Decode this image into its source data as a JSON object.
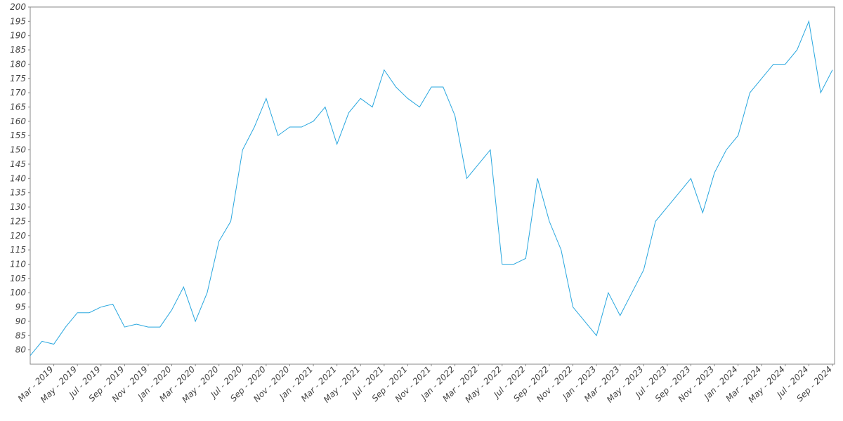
{
  "chart_data": {
    "type": "line",
    "x": [
      "2019-01",
      "2019-02",
      "2019-03",
      "2019-04",
      "2019-05",
      "2019-06",
      "2019-07",
      "2019-08",
      "2019-09",
      "2019-10",
      "2019-11",
      "2019-12",
      "2020-01",
      "2020-02",
      "2020-03",
      "2020-04",
      "2020-05",
      "2020-06",
      "2020-07",
      "2020-08",
      "2020-09",
      "2020-10",
      "2020-11",
      "2020-12",
      "2021-01",
      "2021-02",
      "2021-03",
      "2021-04",
      "2021-05",
      "2021-06",
      "2021-07",
      "2021-08",
      "2021-09",
      "2021-10",
      "2021-11",
      "2021-12",
      "2022-01",
      "2022-02",
      "2022-03",
      "2022-04",
      "2022-05",
      "2022-06",
      "2022-07",
      "2022-08",
      "2022-09",
      "2022-10",
      "2022-11",
      "2022-12",
      "2023-01",
      "2023-02",
      "2023-03",
      "2023-04",
      "2023-05",
      "2023-06",
      "2023-07",
      "2023-08",
      "2023-09",
      "2023-10",
      "2023-11",
      "2023-12",
      "2024-01",
      "2024-02",
      "2024-03",
      "2024-04",
      "2024-05",
      "2024-06",
      "2024-07",
      "2024-08",
      "2024-09"
    ],
    "series": [
      {
        "color": "#29a7df",
        "values": [
          78,
          83,
          82,
          88,
          93,
          93,
          95,
          96,
          88,
          89,
          88,
          88,
          94,
          102,
          90,
          100,
          118,
          125,
          150,
          158,
          168,
          155,
          158,
          158,
          160,
          165,
          152,
          163,
          168,
          165,
          178,
          172,
          168,
          165,
          172,
          172,
          162,
          140,
          145,
          150,
          110,
          110,
          112,
          140,
          125,
          115,
          95,
          90,
          85,
          100,
          92,
          100,
          108,
          125,
          130,
          135,
          140,
          128,
          142,
          150,
          155,
          170,
          175,
          180,
          180,
          185,
          195,
          170,
          178
        ]
      }
    ],
    "xlim": [
      "2019-01",
      "2024-09"
    ],
    "xticks": [
      {
        "value": "2019-03",
        "label": "Mar - 2019"
      },
      {
        "value": "2019-05",
        "label": "May - 2019"
      },
      {
        "value": "2019-07",
        "label": "Jul - 2019"
      },
      {
        "value": "2019-09",
        "label": "Sep - 2019"
      },
      {
        "value": "2019-11",
        "label": "Nov - 2019"
      },
      {
        "value": "2020-01",
        "label": "Jan - 2020"
      },
      {
        "value": "2020-03",
        "label": "Mar - 2020"
      },
      {
        "value": "2020-05",
        "label": "May - 2020"
      },
      {
        "value": "2020-07",
        "label": "Jul - 2020"
      },
      {
        "value": "2020-09",
        "label": "Sep - 2020"
      },
      {
        "value": "2020-11",
        "label": "Nov - 2020"
      },
      {
        "value": "2021-01",
        "label": "Jan - 2021"
      },
      {
        "value": "2021-03",
        "label": "Mar - 2021"
      },
      {
        "value": "2021-05",
        "label": "May - 2021"
      },
      {
        "value": "2021-07",
        "label": "Jul - 2021"
      },
      {
        "value": "2021-09",
        "label": "Sep - 2021"
      },
      {
        "value": "2021-11",
        "label": "Nov - 2021"
      },
      {
        "value": "2022-01",
        "label": "Jan - 2022"
      },
      {
        "value": "2022-03",
        "label": "Mar - 2022"
      },
      {
        "value": "2022-05",
        "label": "May - 2022"
      },
      {
        "value": "2022-07",
        "label": "Jul - 2022"
      },
      {
        "value": "2022-09",
        "label": "Sep - 2022"
      },
      {
        "value": "2022-11",
        "label": "Nov - 2022"
      },
      {
        "value": "2023-01",
        "label": "Jan - 2023"
      },
      {
        "value": "2023-03",
        "label": "Mar - 2023"
      },
      {
        "value": "2023-05",
        "label": "May - 2023"
      },
      {
        "value": "2023-07",
        "label": "Jul - 2023"
      },
      {
        "value": "2023-09",
        "label": "Sep - 2023"
      },
      {
        "value": "2023-11",
        "label": "Nov - 2023"
      },
      {
        "value": "2024-01",
        "label": "Jan - 2024"
      },
      {
        "value": "2024-03",
        "label": "Mar - 2024"
      },
      {
        "value": "2024-05",
        "label": "May - 2024"
      },
      {
        "value": "2024-07",
        "label": "Jul - 2024"
      },
      {
        "value": "2024-09",
        "label": "Sep - 2024"
      }
    ],
    "ylim": [
      75,
      200
    ],
    "yticks": [
      80,
      85,
      90,
      95,
      100,
      105,
      110,
      115,
      120,
      125,
      130,
      135,
      140,
      145,
      150,
      155,
      160,
      165,
      170,
      175,
      180,
      185,
      190,
      195,
      200
    ],
    "grid": false
  }
}
